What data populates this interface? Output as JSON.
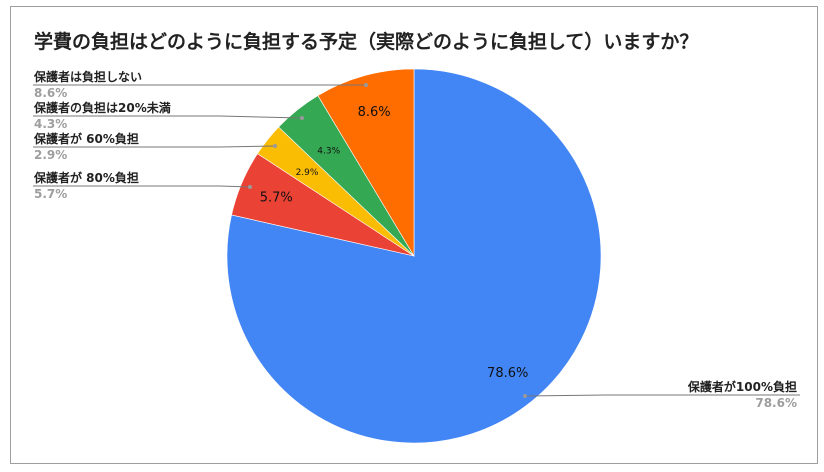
{
  "chart_data": {
    "type": "pie",
    "title": "学費の負担はどのように負担する予定（実際どのように負担して）いますか？",
    "start": "top",
    "direction": "clockwise",
    "slices": [
      {
        "label": "保護者が100%負担",
        "value": 78.6,
        "display": "78.6%",
        "color": "#4285f4"
      },
      {
        "label": "保護者が 80%負担",
        "value": 5.7,
        "display": "5.7%",
        "color": "#ea4335"
      },
      {
        "label": "保護者が 60%負担",
        "value": 2.9,
        "display": "2.9%",
        "color": "#fbbc04"
      },
      {
        "label": "保護者の負担は20%未満",
        "value": 4.3,
        "display": "4.3%",
        "color": "#34a853"
      },
      {
        "label": "保護者は負担しない",
        "value": 8.6,
        "display": "8.6%",
        "color": "#ff6d01"
      }
    ]
  }
}
